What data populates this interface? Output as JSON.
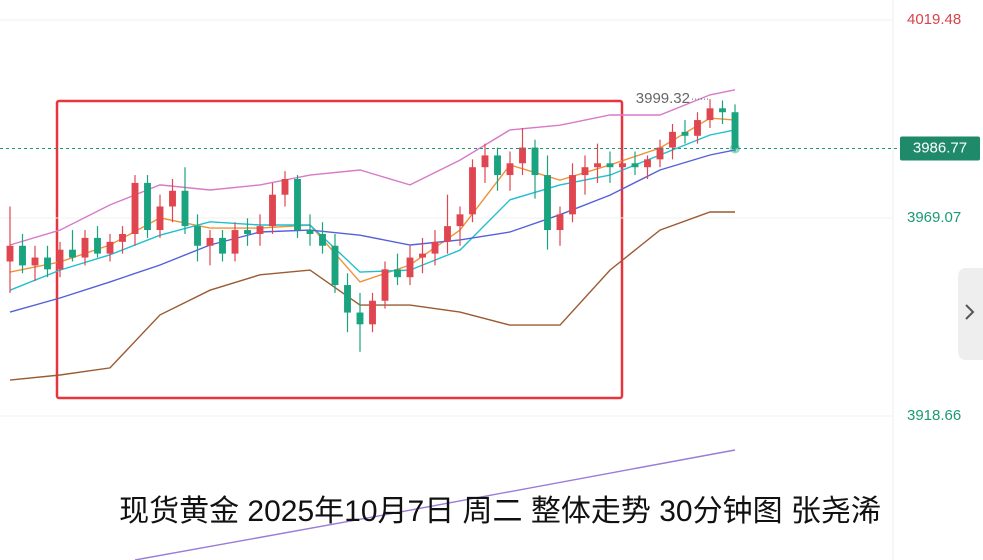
{
  "chart_data": {
    "type": "candlestick",
    "title": "现货黄金 2025年10月7日 周二 整体走势 30分钟图 张尧浠",
    "up_color": "#e0464f",
    "down_color": "#1aa37f",
    "ylim": [
      3882.0,
      4024.57
    ],
    "xlim": [
      -0.8,
      70.64
    ],
    "yticks": [
      4019.48,
      3969.07,
      3918.66
    ],
    "last_price": 3986.77,
    "high_label": 3999.32,
    "open": [
      3958,
      3962,
      3957,
      3959,
      3956,
      3961,
      3959,
      3964,
      3960,
      3963,
      3965,
      3978,
      3966,
      3972,
      3976,
      3967,
      3962,
      3964,
      3960,
      3966,
      3965,
      3967,
      3975,
      3979,
      3966,
      3965,
      3962,
      3952,
      3945,
      3942,
      3948,
      3956,
      3954,
      3959,
      3960,
      3963,
      3967,
      3970,
      3982,
      3985,
      3980,
      3983,
      3987,
      3980,
      3966,
      3970,
      3980,
      3982,
      3983,
      3982,
      3983,
      3982,
      3984,
      3987,
      3991,
      3990,
      3994,
      3997,
      3996
    ],
    "high": [
      3972,
      3965,
      3962,
      3962,
      3963,
      3966,
      3966,
      3967,
      3965,
      3967,
      3980,
      3980,
      3975,
      3979,
      3982,
      3970,
      3966,
      3966,
      3968,
      3969,
      3970,
      3978,
      3981,
      3980,
      3970,
      3968,
      3965,
      3955,
      3950,
      3950,
      3958,
      3960,
      3962,
      3964,
      3966,
      3975,
      3972,
      3984,
      3988,
      3987,
      3986,
      3992,
      3989,
      3985,
      3972,
      3983,
      3985,
      3988,
      3986,
      3985,
      3986,
      3985,
      3989,
      3993,
      3994,
      3996,
      3999.32,
      3999,
      3998
    ],
    "low": [
      3950,
      3955,
      3953,
      3954,
      3954,
      3958,
      3957,
      3959,
      3958,
      3960,
      3962,
      3964,
      3964,
      3968,
      3965,
      3958,
      3957,
      3958,
      3958,
      3962,
      3962,
      3965,
      3972,
      3964,
      3962,
      3960,
      3950,
      3940,
      3935,
      3940,
      3946,
      3952,
      3952,
      3955,
      3957,
      3960,
      3962,
      3968,
      3978,
      3976,
      3976,
      3980,
      3974,
      3961,
      3962,
      3968,
      3975,
      3978,
      3978,
      3979,
      3980,
      3979,
      3982,
      3984,
      3988,
      3988,
      3992,
      3993,
      3986
    ],
    "close": [
      3962,
      3957,
      3959,
      3956,
      3961,
      3959,
      3964,
      3960,
      3963,
      3965,
      3978,
      3966,
      3972,
      3976,
      3967,
      3962,
      3964,
      3960,
      3966,
      3965,
      3967,
      3975,
      3979,
      3966,
      3965,
      3962,
      3952,
      3945,
      3942,
      3948,
      3956,
      3954,
      3959,
      3960,
      3963,
      3967,
      3970,
      3982,
      3985,
      3980,
      3983,
      3987,
      3980,
      3966,
      3970,
      3980,
      3982,
      3983,
      3982,
      3983,
      3982,
      3984,
      3987,
      3991,
      3990,
      3994,
      3997,
      3996,
      3986.77
    ],
    "lines": [
      {
        "color": "#d97ac8",
        "x": [
          0,
          4,
          8,
          12,
          16,
          20,
          24,
          28,
          32,
          36,
          40,
          44,
          48,
          52,
          56,
          58
        ],
        "values": [
          3962.2,
          3966.0,
          3972.4,
          3977.5,
          3976.2,
          3977.5,
          3980.0,
          3981.3,
          3977.5,
          3983.8,
          3991.5,
          3992.7,
          3995.3,
          3995.3,
          4000.4,
          4001.7
        ]
      },
      {
        "color": "#9a5a32",
        "x": [
          0,
          4,
          8,
          12,
          16,
          20,
          24,
          28,
          32,
          36,
          40,
          44,
          48,
          52,
          56,
          58
        ],
        "values": [
          3927.8,
          3929.1,
          3930.9,
          3944.4,
          3950.7,
          3954.6,
          3955.8,
          3946.9,
          3946.9,
          3945.1,
          3941.8,
          3941.8,
          3955.8,
          3966.0,
          3970.6,
          3970.6
        ]
      },
      {
        "color": "#f0923a",
        "x": [
          0,
          4,
          8,
          12,
          16,
          20,
          24,
          28,
          32,
          36,
          40,
          44,
          48,
          52,
          56,
          58
        ],
        "values": [
          3955.3,
          3957.9,
          3962.2,
          3969.1,
          3966.5,
          3966.5,
          3967.3,
          3952.8,
          3957.1,
          3966.0,
          3982.6,
          3978.7,
          3982.6,
          3986.9,
          3994.5,
          3994.0
        ]
      },
      {
        "color": "#1fbfcf",
        "x": [
          0,
          4,
          8,
          12,
          16,
          20,
          24,
          28,
          32,
          36,
          40,
          44,
          48,
          52,
          56,
          58
        ],
        "values": [
          3950.7,
          3955.8,
          3959.7,
          3964.7,
          3968.1,
          3967.3,
          3967.3,
          3955.3,
          3955.8,
          3960.9,
          3973.7,
          3977.5,
          3980.0,
          3985.1,
          3990.2,
          3991.5
        ]
      },
      {
        "color": "#5560d8",
        "x": [
          0,
          4,
          8,
          12,
          16,
          20,
          24,
          28,
          32,
          36,
          40,
          44,
          48,
          52,
          56,
          58
        ],
        "values": [
          3945.1,
          3948.7,
          3952.8,
          3957.1,
          3962.2,
          3965.5,
          3966.0,
          3964.7,
          3962.2,
          3963.5,
          3965.5,
          3969.9,
          3974.9,
          3981.3,
          3985.1,
          3986.4
        ]
      },
      {
        "color": "#9b7ad8",
        "x": [
          10,
          30,
          58
        ],
        "values": [
          3882.0,
          3893.5,
          3910.0
        ]
      }
    ]
  }
}
